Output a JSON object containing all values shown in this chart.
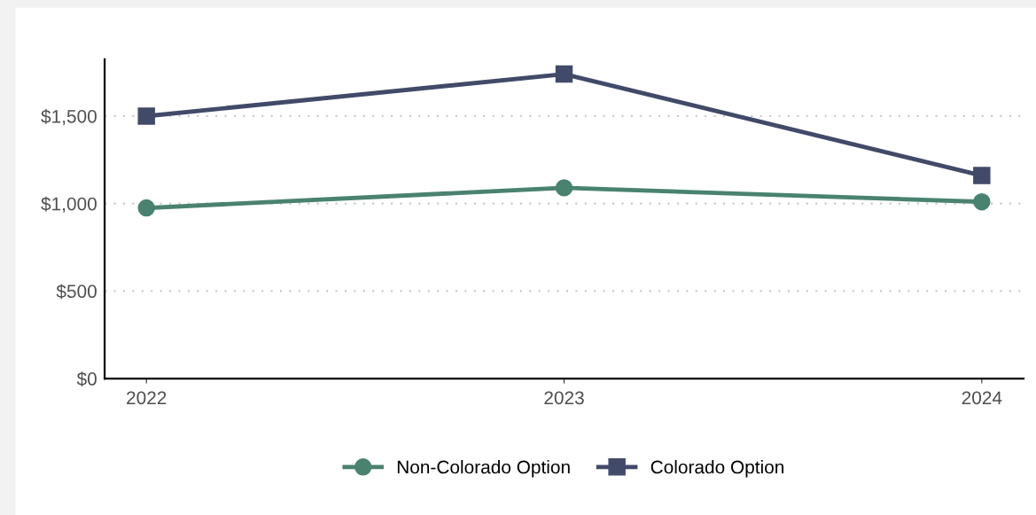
{
  "chart_data": {
    "type": "line",
    "categories": [
      "2022",
      "2023",
      "2024"
    ],
    "series": [
      {
        "name": "Non-Colorado Option",
        "color": "#4a8270",
        "marker": "circle",
        "values": [
          975,
          1090,
          1010
        ]
      },
      {
        "name": "Colorado Option",
        "color": "#414a68",
        "marker": "square",
        "values": [
          1500,
          1740,
          1160
        ]
      }
    ],
    "ylim": [
      0,
      1825
    ],
    "yticks": [
      {
        "value": 0,
        "label": "$0"
      },
      {
        "value": 500,
        "label": "$500"
      },
      {
        "value": 1000,
        "label": "$1,000"
      },
      {
        "value": 1500,
        "label": "$1,500"
      }
    ],
    "grid": "y",
    "legend": "bottom",
    "line_style": "solid"
  }
}
